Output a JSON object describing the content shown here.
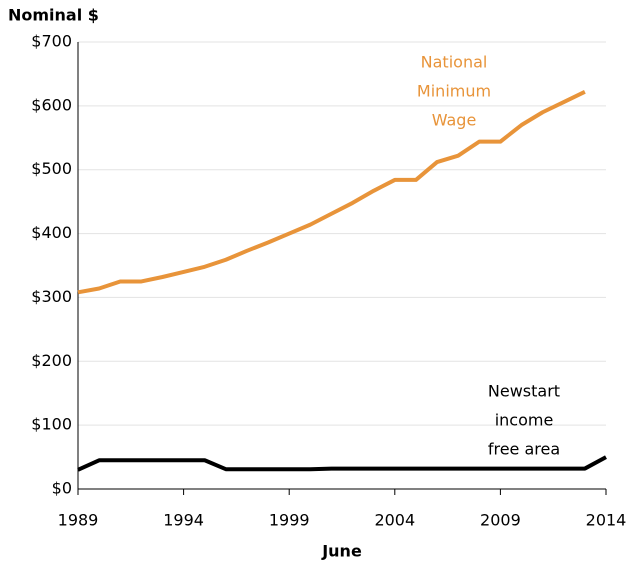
{
  "chart_data": {
    "type": "line",
    "y_label": "Nominal $",
    "x_label": "June",
    "x": [
      1989,
      1990,
      1991,
      1992,
      1993,
      1994,
      1995,
      1996,
      1997,
      1998,
      1999,
      2000,
      2001,
      2002,
      2003,
      2004,
      2005,
      2006,
      2007,
      2008,
      2009,
      2010,
      2011,
      2012,
      2013,
      2014
    ],
    "series": [
      {
        "name": "National Minimum Wage",
        "name_lines": [
          "National",
          "Minimum",
          "Wage"
        ],
        "color": "#e8943a",
        "values": [
          308,
          314,
          325,
          325,
          332,
          340,
          348,
          359,
          373,
          386,
          400,
          414,
          431,
          448,
          467,
          484,
          484,
          512,
          522,
          544,
          544,
          570,
          590,
          606,
          622,
          null
        ]
      },
      {
        "name": "Newstart income free area",
        "name_lines": [
          "Newstart",
          "income",
          "free area"
        ],
        "color": "#000000",
        "values": [
          30,
          45,
          45,
          45,
          45,
          45,
          45,
          31,
          31,
          31,
          31,
          31,
          32,
          32,
          32,
          32,
          32,
          32,
          32,
          32,
          32,
          32,
          32,
          32,
          32,
          50
        ]
      }
    ],
    "xlim": [
      1989,
      2014
    ],
    "xticks": [
      1989,
      1994,
      1999,
      2004,
      2009,
      2014
    ],
    "ylim": [
      0,
      700
    ],
    "yticks": [
      {
        "value": 0,
        "label": "$0"
      },
      {
        "value": 100,
        "label": "$100"
      },
      {
        "value": 200,
        "label": "$200"
      },
      {
        "value": 300,
        "label": "$300"
      },
      {
        "value": 400,
        "label": "$400"
      },
      {
        "value": 500,
        "label": "$500"
      },
      {
        "value": 600,
        "label": "$600"
      },
      {
        "value": 700,
        "label": "$700"
      }
    ],
    "grid": true
  }
}
